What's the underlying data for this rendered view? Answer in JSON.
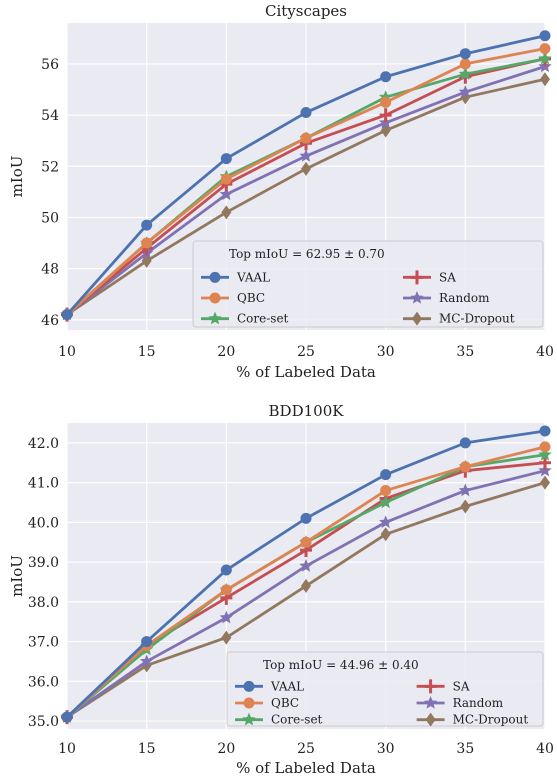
{
  "chart_data": [
    {
      "type": "line",
      "title": "Cityscapes",
      "xlabel": "% of Labeled Data",
      "ylabel": "mIoU",
      "x": [
        10,
        15,
        20,
        25,
        30,
        35,
        40
      ],
      "xlim": [
        10,
        40
      ],
      "ylim": [
        45.6,
        57.6
      ],
      "xticks": [
        "10",
        "15",
        "20",
        "25",
        "30",
        "35",
        "40"
      ],
      "yticks": [
        46,
        48,
        50,
        52,
        54,
        56
      ],
      "ytick_labels": [
        "46",
        "48",
        "50",
        "52",
        "54",
        "56"
      ],
      "grid": true,
      "legend_title": "Top mIoU = 62.95 ± 0.70",
      "legend_position": "lower-right",
      "series": [
        {
          "name": "VAAL",
          "color": "#4c72b0",
          "marker": "circle",
          "values": [
            46.2,
            49.7,
            52.3,
            54.1,
            55.5,
            56.4,
            57.1
          ]
        },
        {
          "name": "QBC",
          "color": "#dd8452",
          "marker": "circle",
          "values": [
            46.2,
            49.0,
            51.5,
            53.1,
            54.5,
            56.0,
            56.6
          ]
        },
        {
          "name": "Core-set",
          "color": "#55a868",
          "marker": "star",
          "values": [
            46.2,
            49.0,
            51.6,
            53.1,
            54.7,
            55.6,
            56.2
          ]
        },
        {
          "name": "SA",
          "color": "#c44e52",
          "marker": "plus",
          "values": [
            46.2,
            48.8,
            51.3,
            52.9,
            54.0,
            55.5,
            56.2
          ]
        },
        {
          "name": "Random",
          "color": "#8172b3",
          "marker": "star",
          "values": [
            46.2,
            48.6,
            50.9,
            52.4,
            53.7,
            54.9,
            55.9
          ]
        },
        {
          "name": "MC-Dropout",
          "color": "#937860",
          "marker": "diamond",
          "values": [
            46.2,
            48.3,
            50.2,
            51.9,
            53.4,
            54.7,
            55.4
          ]
        }
      ]
    },
    {
      "type": "line",
      "title": "BDD100K",
      "xlabel": "% of Labeled Data",
      "ylabel": "mIoU",
      "x": [
        10,
        15,
        20,
        25,
        30,
        35,
        40
      ],
      "xlim": [
        10,
        40
      ],
      "ylim": [
        34.8,
        42.5
      ],
      "xticks": [
        "10",
        "15",
        "20",
        "25",
        "30",
        "35",
        "40"
      ],
      "yticks": [
        35,
        36,
        37,
        38,
        39,
        40,
        41,
        42
      ],
      "ytick_labels": [
        "35.0",
        "36.0",
        "37.0",
        "38.0",
        "39.0",
        "40.0",
        "41.0",
        "42.0"
      ],
      "grid": true,
      "legend_title": "Top mIoU = 44.96 ± 0.40",
      "legend_position": "lower-right",
      "series": [
        {
          "name": "VAAL",
          "color": "#4c72b0",
          "marker": "circle",
          "values": [
            35.1,
            37.0,
            38.8,
            40.1,
            41.2,
            42.0,
            42.3
          ]
        },
        {
          "name": "QBC",
          "color": "#dd8452",
          "marker": "circle",
          "values": [
            35.1,
            36.9,
            38.3,
            39.5,
            40.8,
            41.4,
            41.9
          ]
        },
        {
          "name": "Core-set",
          "color": "#55a868",
          "marker": "star",
          "values": [
            35.1,
            36.8,
            38.3,
            39.5,
            40.5,
            41.4,
            41.7
          ]
        },
        {
          "name": "SA",
          "color": "#c44e52",
          "marker": "plus",
          "values": [
            35.1,
            36.9,
            38.1,
            39.3,
            40.6,
            41.3,
            41.5
          ]
        },
        {
          "name": "Random",
          "color": "#8172b3",
          "marker": "star",
          "values": [
            35.1,
            36.5,
            37.6,
            38.9,
            40.0,
            40.8,
            41.3
          ]
        },
        {
          "name": "MC-Dropout",
          "color": "#937860",
          "marker": "diamond",
          "values": [
            35.1,
            36.4,
            37.1,
            38.4,
            39.7,
            40.4,
            41.0
          ]
        }
      ]
    }
  ]
}
